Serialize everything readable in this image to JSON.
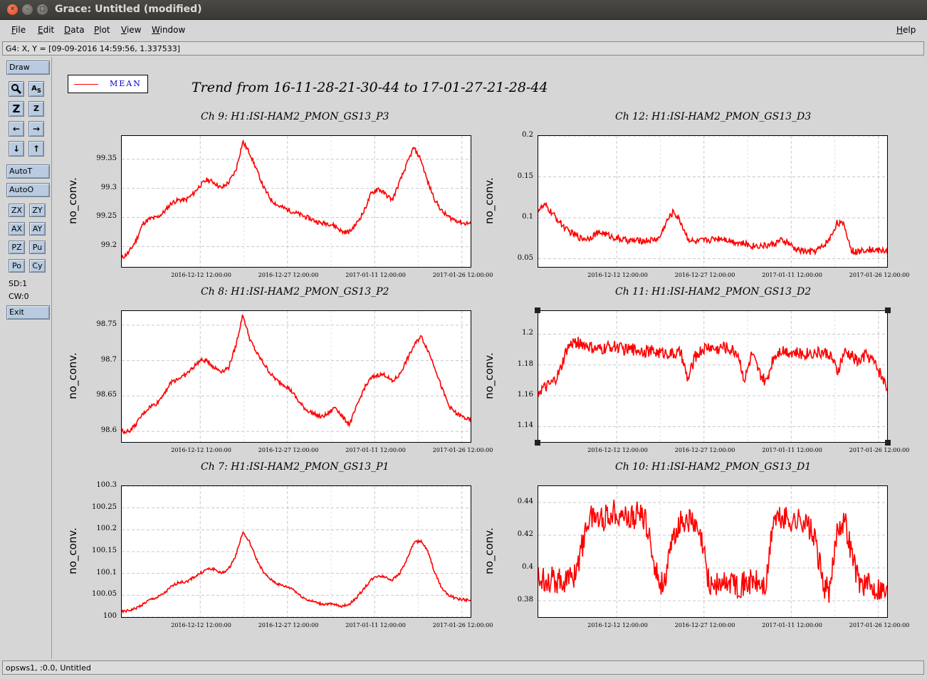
{
  "window": {
    "title": "Grace: Untitled (modified)"
  },
  "menu": {
    "items": [
      "File",
      "Edit",
      "Data",
      "Plot",
      "View",
      "Window"
    ],
    "help": "Help"
  },
  "locator": {
    "text": "G4: X, Y = [09-09-2016 14:59:56, 1.337533]"
  },
  "tools": {
    "draw": "Draw",
    "autot": "AutoT",
    "autoo": "AutoO",
    "zx": "ZX",
    "zy": "ZY",
    "ax": "AX",
    "ay": "AY",
    "pz": "PZ",
    "pu": "Pu",
    "po": "Po",
    "cy": "Cy",
    "sd": "SD:1",
    "cw": "CW:0",
    "exit": "Exit",
    "icons": [
      "zoom-icon",
      "text-autoscale-icon",
      "zoom-in-z-icon",
      "zoom-out-z-icon",
      "left-arrow-icon",
      "right-arrow-icon",
      "down-arrow-icon",
      "up-arrow-icon"
    ]
  },
  "legend": {
    "label": "MEAN",
    "color": "#ff0000"
  },
  "main_title": "Trend from 16-11-28-21-30-44 to 17-01-27-21-28-44",
  "status": {
    "text": "opsws1, :0.0, Untitled"
  },
  "chart_data": [
    {
      "type": "line",
      "title": "Ch 9: H1:ISI-HAM2_PMON_GS13_P3",
      "ylabel": "no_conv.",
      "ylim": [
        99.165,
        99.39
      ],
      "yticks": [
        "99.2",
        "99.25",
        "99.3",
        "99.35"
      ],
      "xticks": [
        "2016-12-12 12:00:00",
        "2016-12-27 12:00:00",
        "2017-01-11 12:00:00",
        "2017-01-26 12:00:00"
      ],
      "series": [
        {
          "name": "MEAN",
          "color": "#ff0000",
          "noise": 0.004,
          "values": [
            99.18,
            99.19,
            99.21,
            99.24,
            99.248,
            99.25,
            99.26,
            99.275,
            99.28,
            99.28,
            99.29,
            99.305,
            99.315,
            99.31,
            99.3,
            99.31,
            99.33,
            99.38,
            99.36,
            99.33,
            99.3,
            99.28,
            99.27,
            99.265,
            99.26,
            99.255,
            99.25,
            99.245,
            99.24,
            99.24,
            99.235,
            99.225,
            99.225,
            99.24,
            99.26,
            99.29,
            99.3,
            99.29,
            99.28,
            99.31,
            99.34,
            99.37,
            99.35,
            99.31,
            99.28,
            99.26,
            99.25,
            99.245,
            99.24,
            99.24
          ]
        }
      ]
    },
    {
      "type": "line",
      "title": "Ch 12: H1:ISI-HAM2_PMON_GS13_D3",
      "ylabel": "no_conv.",
      "ylim": [
        0.04,
        0.2
      ],
      "yticks": [
        "0.05",
        "0.1",
        "0.15",
        "0.2"
      ],
      "xticks": [
        "2016-12-12 12:00:00",
        "2016-12-27 12:00:00",
        "2017-01-11 12:00:00",
        "2017-01-26 12:00:00"
      ],
      "series": [
        {
          "name": "MEAN",
          "color": "#ff0000",
          "noise": 0.004,
          "values": [
            0.11,
            0.115,
            0.105,
            0.095,
            0.085,
            0.08,
            0.075,
            0.075,
            0.08,
            0.082,
            0.078,
            0.075,
            0.073,
            0.072,
            0.072,
            0.072,
            0.073,
            0.075,
            0.095,
            0.108,
            0.095,
            0.075,
            0.07,
            0.072,
            0.073,
            0.075,
            0.075,
            0.072,
            0.07,
            0.068,
            0.066,
            0.066,
            0.066,
            0.068,
            0.072,
            0.07,
            0.062,
            0.06,
            0.058,
            0.06,
            0.065,
            0.075,
            0.095,
            0.09,
            0.06,
            0.058,
            0.062,
            0.061,
            0.06,
            0.06
          ]
        }
      ]
    },
    {
      "type": "line",
      "title": "Ch 8: H1:ISI-HAM2_PMON_GS13_P2",
      "ylabel": "no_conv.",
      "ylim": [
        98.585,
        98.77
      ],
      "yticks": [
        "98.6",
        "98.65",
        "98.7",
        "98.75"
      ],
      "xticks": [
        "2016-12-12 12:00:00",
        "2016-12-27 12:00:00",
        "2017-01-11 12:00:00",
        "2017-01-26 12:00:00"
      ],
      "series": [
        {
          "name": "MEAN",
          "color": "#ff0000",
          "noise": 0.003,
          "values": [
            98.6,
            98.6,
            98.61,
            98.625,
            98.635,
            98.64,
            98.655,
            98.67,
            98.675,
            98.68,
            98.69,
            98.7,
            98.7,
            98.69,
            98.685,
            98.69,
            98.72,
            98.765,
            98.73,
            98.71,
            98.695,
            98.68,
            98.67,
            98.665,
            98.655,
            98.64,
            98.63,
            98.625,
            98.62,
            98.625,
            98.635,
            98.62,
            98.61,
            98.635,
            98.66,
            98.675,
            98.68,
            98.68,
            98.67,
            98.68,
            98.7,
            98.72,
            98.735,
            98.715,
            98.69,
            98.66,
            98.635,
            98.625,
            98.62,
            98.615
          ]
        }
      ]
    },
    {
      "type": "line",
      "title": "Ch 11: H1:ISI-HAM2_PMON_GS13_D2",
      "ylabel": "no_conv.",
      "ylim": [
        1.13,
        1.215
      ],
      "yticks": [
        "1.14",
        "1.16",
        "1.18",
        "1.2"
      ],
      "xticks": [
        "2016-12-12 12:00:00",
        "2016-12-27 12:00:00",
        "2017-01-11 12:00:00",
        "2017-01-26 12:00:00"
      ],
      "series": [
        {
          "name": "MEAN",
          "color": "#ff0000",
          "noise": 0.004,
          "values": [
            1.163,
            1.165,
            1.168,
            1.175,
            1.19,
            1.195,
            1.194,
            1.192,
            1.19,
            1.19,
            1.192,
            1.192,
            1.19,
            1.19,
            1.19,
            1.189,
            1.189,
            1.188,
            1.188,
            1.187,
            1.188,
            1.17,
            1.185,
            1.19,
            1.192,
            1.19,
            1.192,
            1.19,
            1.188,
            1.17,
            1.187,
            1.175,
            1.168,
            1.185,
            1.19,
            1.189,
            1.188,
            1.187,
            1.188,
            1.188,
            1.188,
            1.187,
            1.175,
            1.188,
            1.186,
            1.182,
            1.187,
            1.183,
            1.175,
            1.165
          ]
        }
      ]
    },
    {
      "type": "line",
      "title": "Ch 7: H1:ISI-HAM2_PMON_GS13_P1",
      "ylabel": "no_conv.",
      "ylim": [
        100,
        100.3
      ],
      "yticks": [
        "100",
        "100.05",
        "100.1",
        "100.15",
        "100.2",
        "100.25",
        "100.3"
      ],
      "xticks": [
        "2016-12-12 12:00:00",
        "2016-12-27 12:00:00",
        "2017-01-11 12:00:00",
        "2017-01-26 12:00:00"
      ],
      "series": [
        {
          "name": "MEAN",
          "color": "#ff0000",
          "noise": 0.003,
          "values": [
            100.012,
            100.015,
            100.02,
            100.03,
            100.04,
            100.045,
            100.055,
            100.07,
            100.08,
            100.08,
            100.09,
            100.1,
            100.11,
            100.11,
            100.1,
            100.11,
            100.14,
            100.195,
            100.17,
            100.13,
            100.1,
            100.085,
            100.075,
            100.07,
            100.065,
            100.05,
            100.04,
            100.035,
            100.03,
            100.03,
            100.028,
            100.025,
            100.03,
            100.045,
            100.065,
            100.085,
            100.095,
            100.092,
            100.085,
            100.1,
            100.13,
            100.17,
            100.175,
            100.15,
            100.1,
            100.065,
            100.05,
            100.042,
            100.04,
            100.038
          ]
        }
      ]
    },
    {
      "type": "line",
      "title": "Ch 10: H1:ISI-HAM2_PMON_GS13_D1",
      "ylabel": "no_conv.",
      "ylim": [
        0.37,
        0.45
      ],
      "yticks": [
        "0.38",
        "0.4",
        "0.42",
        "0.44"
      ],
      "xticks": [
        "2016-12-12 12:00:00",
        "2016-12-27 12:00:00",
        "2017-01-11 12:00:00",
        "2017-01-26 12:00:00"
      ],
      "series": [
        {
          "name": "MEAN",
          "color": "#ff0000",
          "noise": 0.008,
          "values": [
            0.393,
            0.394,
            0.393,
            0.392,
            0.393,
            0.395,
            0.41,
            0.43,
            0.432,
            0.43,
            0.433,
            0.435,
            0.432,
            0.43,
            0.433,
            0.43,
            0.41,
            0.39,
            0.395,
            0.42,
            0.428,
            0.43,
            0.425,
            0.415,
            0.39,
            0.39,
            0.39,
            0.392,
            0.39,
            0.39,
            0.392,
            0.39,
            0.388,
            0.43,
            0.43,
            0.43,
            0.428,
            0.43,
            0.425,
            0.415,
            0.39,
            0.385,
            0.425,
            0.43,
            0.41,
            0.392,
            0.39,
            0.388,
            0.388,
            0.385
          ]
        }
      ]
    }
  ]
}
